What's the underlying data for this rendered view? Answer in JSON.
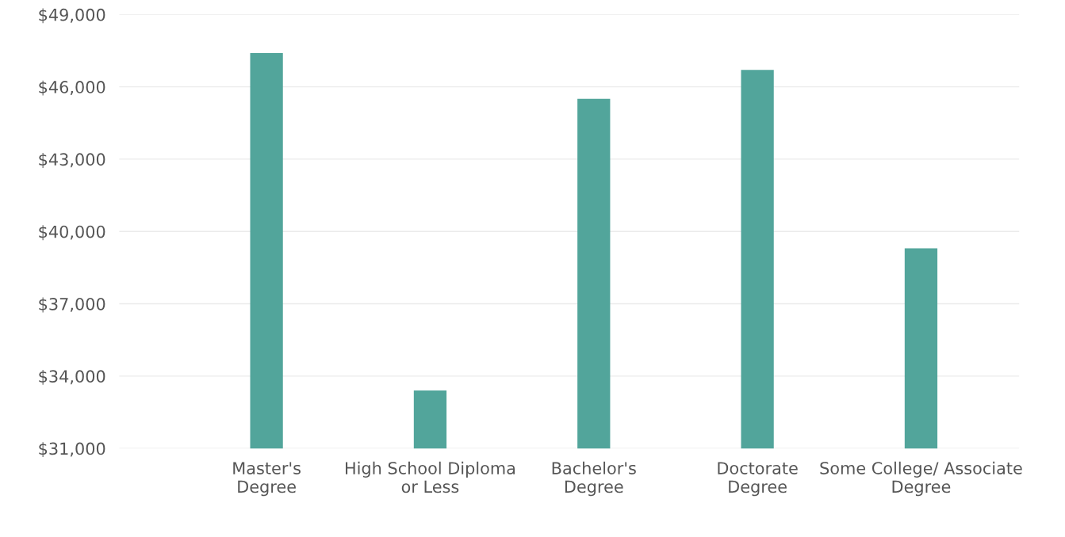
{
  "chart_data": {
    "type": "bar",
    "categories": [
      "Master's\nDegree",
      "High School Diploma\nor Less",
      "Bachelor's\nDegree",
      "Doctorate\nDegree",
      "Some College/ Associate\nDegree"
    ],
    "values": [
      47400,
      33400,
      45500,
      46700,
      39300
    ],
    "color": "#52a59b",
    "ylim": [
      31000,
      49000
    ],
    "yticks": [
      {
        "value": 31000,
        "label": "$31,000"
      },
      {
        "value": 34000,
        "label": "$34,000"
      },
      {
        "value": 37000,
        "label": "$37,000"
      },
      {
        "value": 40000,
        "label": "$40,000"
      },
      {
        "value": 43000,
        "label": "$43,000"
      },
      {
        "value": 46000,
        "label": "$46,000"
      },
      {
        "value": 49000,
        "label": "$49,000"
      }
    ],
    "grid": "y",
    "legend": false
  }
}
